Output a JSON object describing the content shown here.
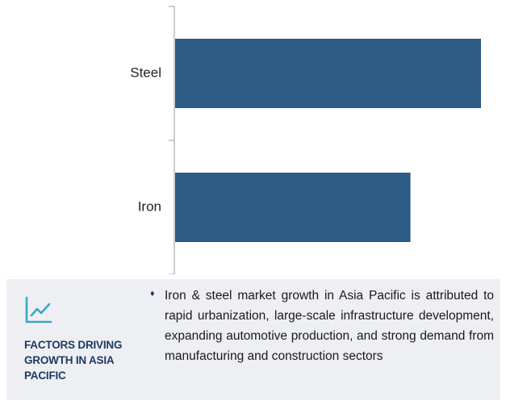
{
  "chart_data": {
    "type": "bar",
    "orientation": "horizontal",
    "categories": [
      "Steel",
      "Iron"
    ],
    "values": [
      100,
      77
    ],
    "xlim": [
      0,
      100
    ],
    "title": "",
    "xlabel": "",
    "ylabel": "",
    "bar_color": "#2d5b85",
    "grid": false
  },
  "panel": {
    "icon": "line-chart-icon",
    "heading": "FACTORS DRIVING GROWTH IN ASIA PACIFIC",
    "bullet": "♦",
    "text": "Iron & steel market growth in Asia Pacific is attributed to rapid urbanization, large-scale infrastructure development, expanding automotive production, and strong demand from manufacturing and construction sectors",
    "accent_color": "#1b3a63",
    "icon_color": "#3aa8c4"
  }
}
